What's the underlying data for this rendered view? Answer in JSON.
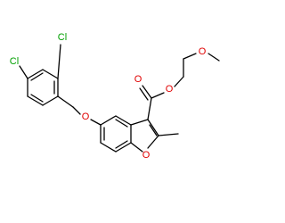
{
  "atoms": [
    {
      "label": "Cl"
    },
    {
      "label": "Cl"
    },
    {
      "label": "O"
    },
    {
      "label": "O"
    },
    {
      "label": "O"
    },
    {
      "label": "O"
    },
    {
      "label": "O"
    }
  ]
}
